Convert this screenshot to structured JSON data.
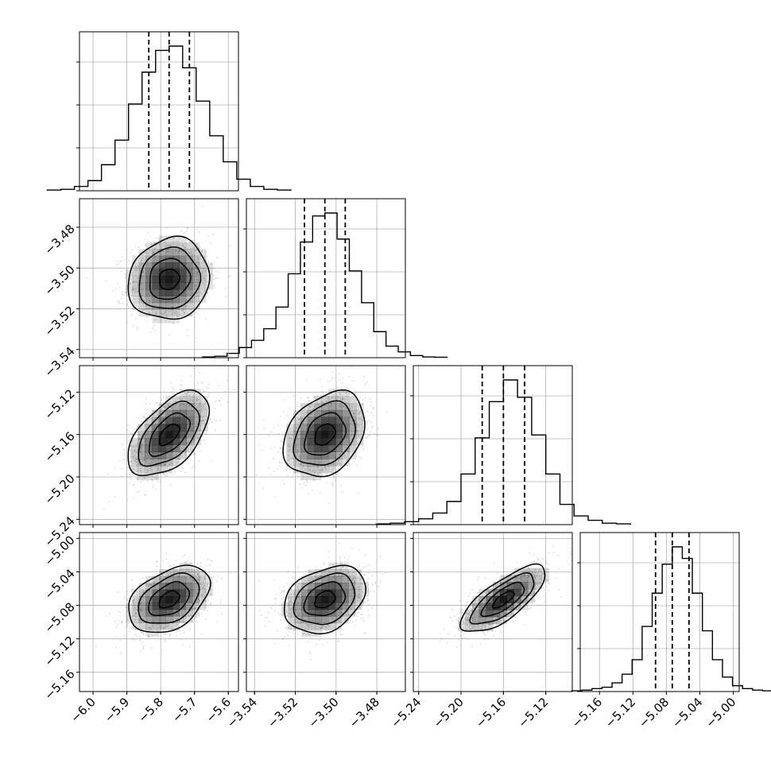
{
  "chart_data": {
    "type": "corner",
    "title": "",
    "grid": true,
    "colors": {
      "line": "#000000",
      "grid": "#b0b0b0",
      "density": "#000000",
      "scatter": "#8c8c8c"
    },
    "parameters": [
      {
        "ticks": [
          "−6.0",
          "−5.9",
          "−5.8",
          "−5.7",
          "−5.6"
        ],
        "tick_values": [
          -6.0,
          -5.9,
          -5.8,
          -5.7,
          -5.6
        ],
        "range": [
          -6.04,
          -5.57
        ],
        "median": -5.775,
        "quantiles": [
          -5.835,
          -5.775,
          -5.715
        ],
        "sigma": 0.06,
        "hist_counts": [
          0.5,
          1,
          3,
          7,
          18,
          35,
          60,
          82,
          97,
          100,
          85,
          62,
          38,
          20,
          8,
          3,
          1,
          0.5
        ]
      },
      {
        "ticks": [
          "−3.54",
          "−3.52",
          "−3.50",
          "−3.48"
        ],
        "tick_values": [
          -3.54,
          -3.52,
          -3.5,
          -3.48
        ],
        "range": [
          -3.544,
          -3.466
        ],
        "median": -3.5055,
        "quantiles": [
          -3.5155,
          -3.5055,
          -3.4955
        ],
        "sigma": 0.01,
        "hist_counts": [
          0.5,
          1,
          3,
          7,
          12,
          20,
          35,
          58,
          80,
          98,
          100,
          82,
          60,
          38,
          18,
          8,
          4,
          1.5,
          0.5,
          0.3
        ]
      },
      {
        "ticks": [
          "−5.24",
          "−5.20",
          "−5.16",
          "−5.12"
        ],
        "tick_values": [
          -5.24,
          -5.2,
          -5.16,
          -5.12
        ],
        "range": [
          -5.245,
          -5.095
        ],
        "median": -5.16,
        "quantiles": [
          -5.18,
          -5.16,
          -5.14
        ],
        "sigma": 0.02,
        "hist_counts": [
          0.5,
          1,
          2,
          4,
          8,
          16,
          35,
          60,
          85,
          100,
          88,
          62,
          35,
          14,
          6,
          3,
          1,
          0.5
        ]
      },
      {
        "ticks": [
          "−5.16",
          "−5.12",
          "−5.08",
          "−5.04",
          "−5.00"
        ],
        "tick_values": [
          -5.16,
          -5.12,
          -5.08,
          -5.04,
          -5.0
        ],
        "range": [
          -5.183,
          -4.993
        ],
        "median": -5.073,
        "quantiles": [
          -5.093,
          -5.073,
          -5.053
        ],
        "sigma": 0.02,
        "hist_counts": [
          0.5,
          1,
          2,
          3,
          6,
          12,
          22,
          45,
          68,
          88,
          100,
          92,
          68,
          42,
          22,
          10,
          4,
          2,
          1,
          0.5
        ]
      }
    ],
    "correlations": {
      "1-0": 0.1,
      "2-0": 0.55,
      "2-1": 0.3,
      "3-0": 0.4,
      "3-1": 0.3,
      "3-2": 0.75
    },
    "contour_levels_sigma": [
      0.5,
      1.0,
      1.5,
      2.0
    ]
  }
}
